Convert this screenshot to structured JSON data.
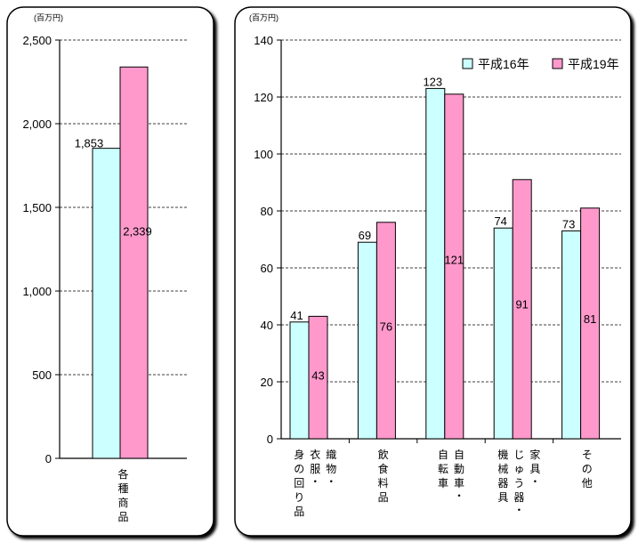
{
  "colors": {
    "h16": "#ccffff",
    "h19": "#ff99cc",
    "panel": "#000000",
    "grid": "#000000"
  },
  "chart_data": [
    {
      "type": "bar",
      "unit": "(百万円)",
      "categories": [
        "各種商品"
      ],
      "series": [
        {
          "name": "平成16年",
          "values": [
            1853
          ],
          "labels": [
            "1,853"
          ]
        },
        {
          "name": "平成19年",
          "values": [
            2339
          ],
          "labels": [
            "2,339"
          ]
        }
      ],
      "ylim": [
        0,
        2500
      ],
      "yticks": [
        0,
        500,
        1000,
        1500,
        2000,
        2500
      ],
      "ytick_labels": [
        "0",
        "500",
        "1,000",
        "1,500",
        "2,000",
        "2,500"
      ],
      "grid": true
    },
    {
      "type": "bar",
      "unit": "(百万円)",
      "categories": [
        "織物・衣服・身の回り品",
        "飲食料品",
        "自動車・自転車",
        "家具・じゅう器・機械器具",
        "その他"
      ],
      "series": [
        {
          "name": "平成16年",
          "values": [
            41,
            69,
            123,
            74,
            73
          ],
          "labels": [
            "41",
            "69",
            "123",
            "74",
            "73"
          ]
        },
        {
          "name": "平成19年",
          "values": [
            43,
            76,
            121,
            91,
            81
          ],
          "labels": [
            "43",
            "76",
            "121",
            "91",
            "81"
          ]
        }
      ],
      "ylim": [
        0,
        140
      ],
      "yticks": [
        0,
        20,
        40,
        60,
        80,
        100,
        120,
        140
      ],
      "ytick_labels": [
        "0",
        "20",
        "40",
        "60",
        "80",
        "100",
        "120",
        "140"
      ],
      "legend": "top-right",
      "grid": true
    }
  ]
}
